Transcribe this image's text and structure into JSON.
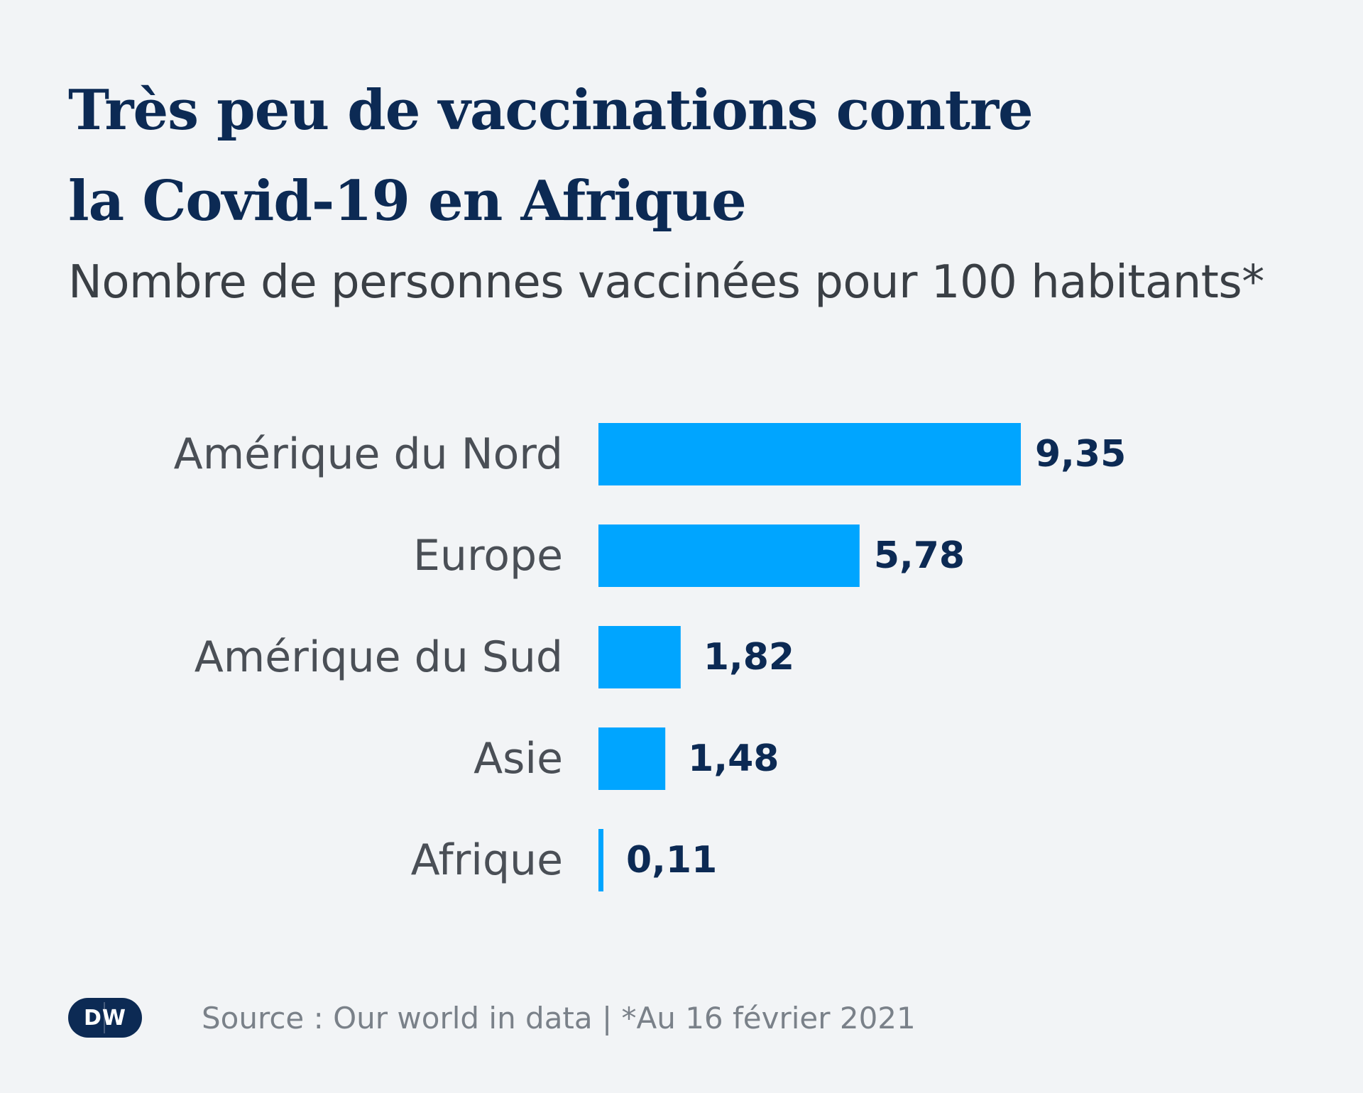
{
  "header": {
    "title_line1": "Très peu de vaccinations contre",
    "title_line2": "la Covid-19 en Afrique",
    "subtitle": "Nombre de personnes vaccinées pour 100 habitants*"
  },
  "footer": {
    "logo_text": "DW",
    "source": "Source : Our world in data | *Au 16 février 2021"
  },
  "colors": {
    "bar": "#00a5ff",
    "value_text": "#0c2a54",
    "background": "#f2f4f6"
  },
  "chart_data": {
    "type": "bar",
    "orientation": "horizontal",
    "title": "Très peu de vaccinations contre la Covid-19 en Afrique",
    "subtitle": "Nombre de personnes vaccinées pour 100 habitants*",
    "categories": [
      "Amérique du Nord",
      "Europe",
      "Amérique du Sud",
      "Asie",
      "Afrique"
    ],
    "values": [
      9.35,
      5.78,
      1.82,
      1.48,
      0.11
    ],
    "value_labels": [
      "9,35",
      "5,78",
      "1,82",
      "1,48",
      "0,11"
    ],
    "xlabel": "",
    "ylabel": "",
    "xlim": [
      0,
      9.35
    ],
    "grid": false,
    "legend": "none"
  }
}
